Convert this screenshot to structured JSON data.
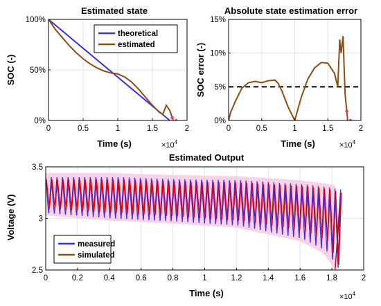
{
  "chart_data": [
    {
      "type": "line",
      "title": "Estimated state",
      "xlabel": "Time (s)",
      "ylabel": "SOC (-)",
      "x_exponent": "×10",
      "x_exponent_power": "4",
      "xlim": [
        0,
        20000
      ],
      "ylim": [
        0,
        1
      ],
      "xticks": [
        0,
        5000,
        10000,
        15000,
        20000
      ],
      "xtick_labels": [
        "0",
        "0.5",
        "1",
        "1.5",
        "2"
      ],
      "yticks": [
        0,
        0.5,
        1
      ],
      "ytick_labels": [
        "0%",
        "50%",
        "100%"
      ],
      "grid": true,
      "legend_position": "top-right",
      "series": [
        {
          "name": "theoretical",
          "color": "#3a2cf0",
          "x": [
            0,
            17500
          ],
          "y": [
            1.0,
            0.0
          ]
        },
        {
          "name": "estimated",
          "color": "#8b4d12",
          "x": [
            0,
            1000,
            2000,
            3000,
            4000,
            5000,
            6000,
            7000,
            8000,
            9000,
            10000,
            11000,
            12000,
            13000,
            14000,
            15000,
            16000,
            16500,
            17000,
            17500,
            18000
          ],
          "y": [
            1.0,
            0.9,
            0.82,
            0.74,
            0.67,
            0.61,
            0.56,
            0.52,
            0.49,
            0.47,
            0.46,
            0.43,
            0.38,
            0.31,
            0.23,
            0.15,
            0.08,
            0.06,
            0.15,
            0.1,
            0.0
          ]
        }
      ]
    },
    {
      "type": "line",
      "title": "Absolute state estimation error",
      "xlabel": "Time (s)",
      "ylabel": "SOC error (-)",
      "x_exponent": "×10",
      "x_exponent_power": "4",
      "xlim": [
        0,
        20000
      ],
      "ylim": [
        0,
        0.15
      ],
      "xticks": [
        0,
        5000,
        10000,
        15000,
        20000
      ],
      "xtick_labels": [
        "0",
        "0.5",
        "1",
        "1.5",
        "2"
      ],
      "yticks": [
        0,
        0.05,
        0.1,
        0.15
      ],
      "ytick_labels": [
        "0%",
        "5%",
        "10%",
        "15%"
      ],
      "grid": true,
      "threshold": 0.05,
      "series": [
        {
          "name": "",
          "color": "#8b4d12",
          "x": [
            0,
            300,
            1000,
            2000,
            3000,
            4000,
            4500,
            5000,
            6000,
            7000,
            7500,
            8000,
            9000,
            10000,
            11000,
            12000,
            13000,
            14000,
            15000,
            16000,
            16500,
            16800,
            17000,
            17300,
            17600,
            18000
          ],
          "y": [
            0.0,
            0.012,
            0.028,
            0.048,
            0.056,
            0.058,
            0.057,
            0.056,
            0.059,
            0.06,
            0.055,
            0.045,
            0.02,
            0.0,
            0.035,
            0.062,
            0.078,
            0.086,
            0.085,
            0.07,
            0.05,
            0.12,
            0.1,
            0.125,
            0.04,
            0.0
          ]
        }
      ]
    },
    {
      "type": "line",
      "title": "Estimated Output",
      "xlabel": "Time (s)",
      "ylabel": "Voltage (V)",
      "x_exponent": "×10",
      "x_exponent_power": "4",
      "xlim": [
        0,
        20000
      ],
      "ylim": [
        2.5,
        3.5
      ],
      "xticks": [
        0,
        2000,
        4000,
        6000,
        8000,
        10000,
        12000,
        14000,
        16000,
        18000,
        20000
      ],
      "xtick_labels": [
        "0",
        "0.2",
        "0.4",
        "0.6",
        "0.8",
        "1",
        "1.2",
        "1.4",
        "1.6",
        "1.8",
        "2"
      ],
      "yticks": [
        2.5,
        3,
        3.5
      ],
      "ytick_labels": [
        "2.5",
        "3",
        "3.5"
      ],
      "grid": true,
      "legend_position": "bottom-left",
      "cycle_period_s": 350,
      "end_time_s": 18200,
      "series": [
        {
          "name": "measured",
          "color": "#3a2cf0",
          "x": [
            0,
            4000,
            8000,
            12000,
            16000,
            17500,
            18200
          ],
          "upper": [
            3.4,
            3.4,
            3.38,
            3.37,
            3.33,
            3.3,
            3.28
          ],
          "lower": [
            3.05,
            3.0,
            2.97,
            2.93,
            2.8,
            2.68,
            2.52
          ]
        },
        {
          "name": "simulated",
          "color": "#8b4d12",
          "x": [
            0,
            4000,
            8000,
            12000,
            16000,
            17500,
            18200
          ],
          "upper": [
            3.38,
            3.38,
            3.36,
            3.35,
            3.31,
            3.28,
            3.25
          ],
          "lower": [
            3.1,
            3.05,
            3.02,
            2.98,
            2.88,
            2.78,
            2.55
          ]
        }
      ]
    }
  ]
}
